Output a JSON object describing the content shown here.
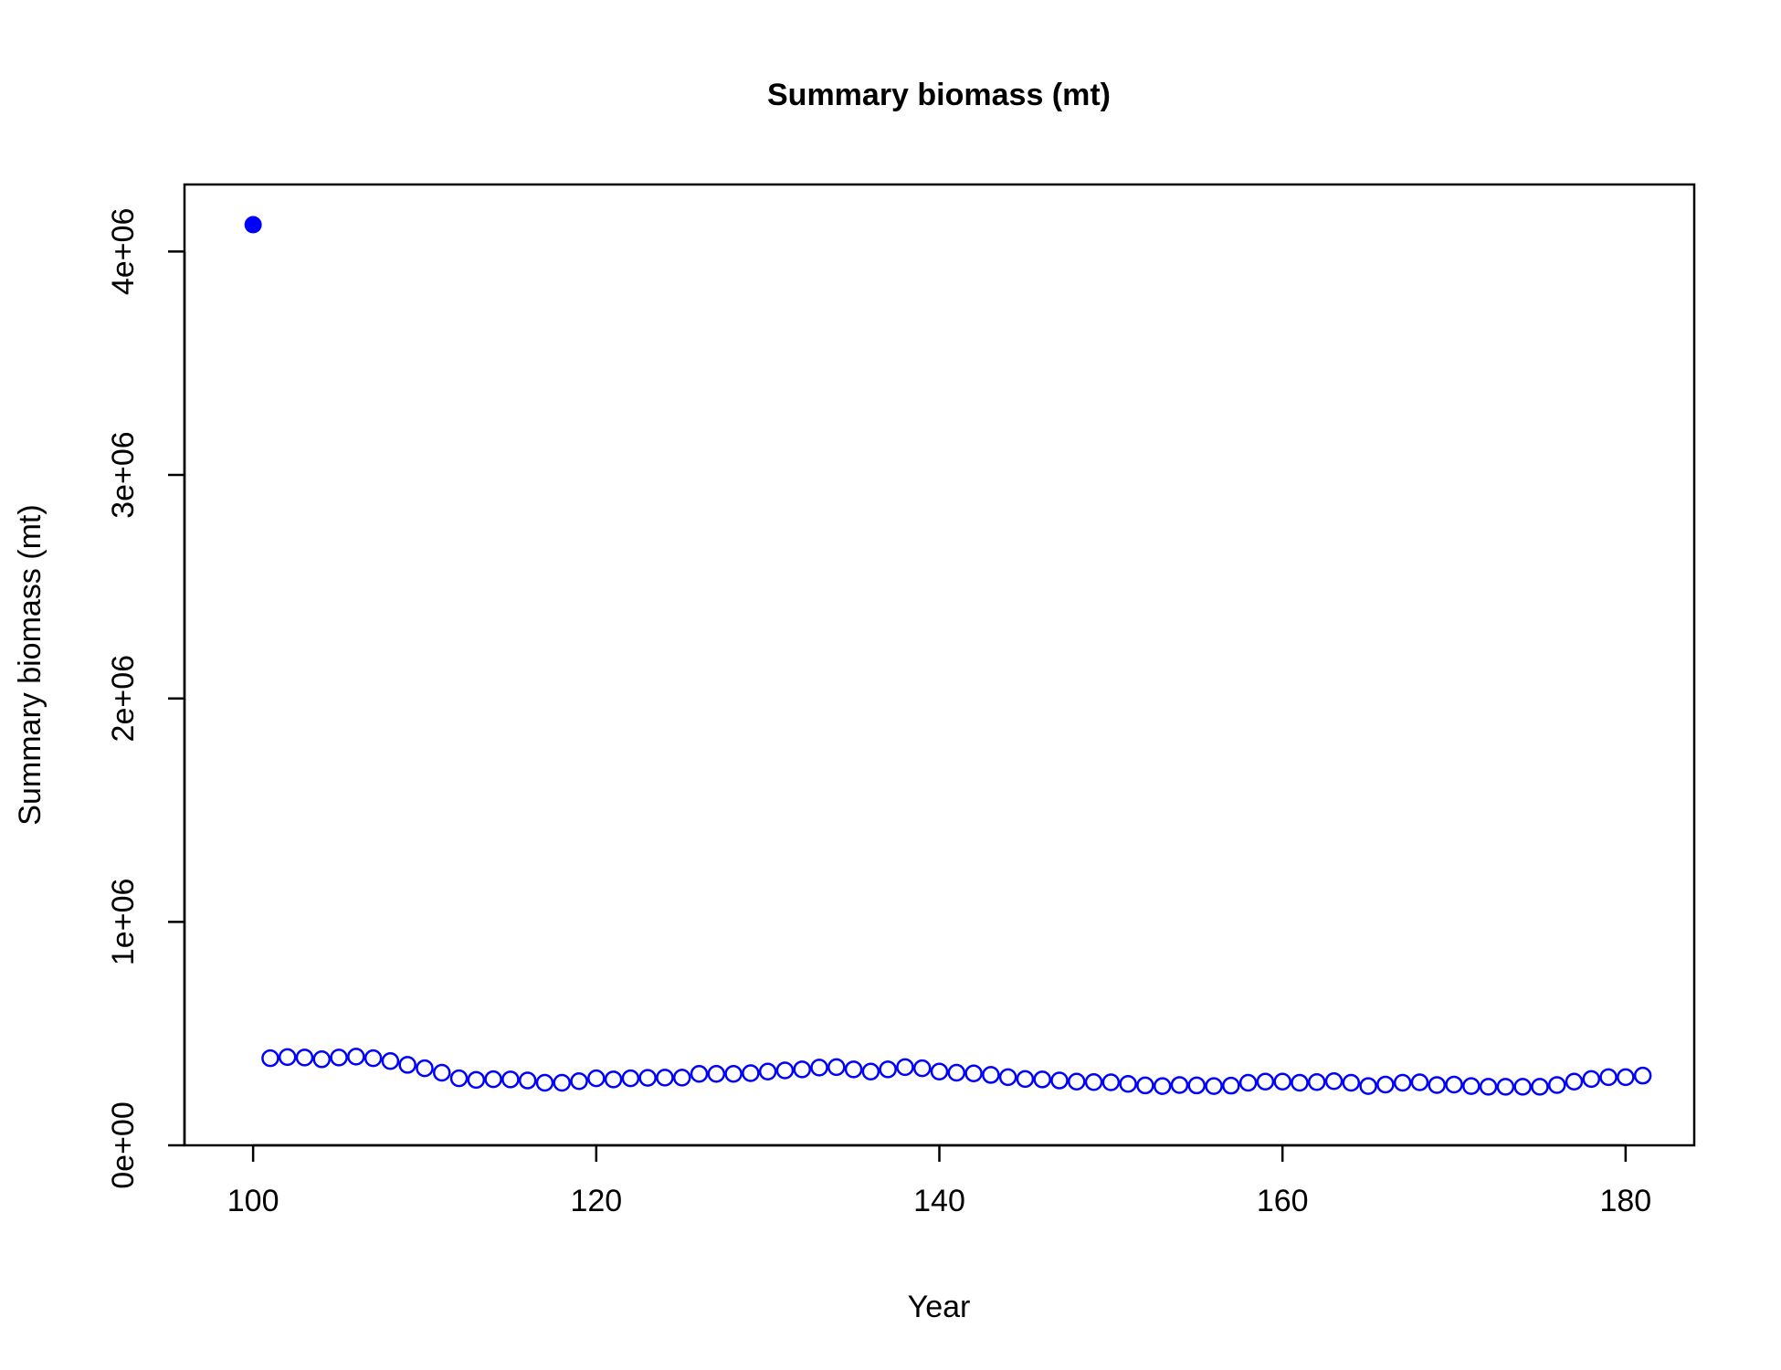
{
  "chart_data": {
    "type": "scatter",
    "title": "Summary biomass (mt)",
    "xlabel": "Year",
    "ylabel": "Summary biomass (mt)",
    "xlim": [
      96,
      184
    ],
    "ylim": [
      0,
      4300000
    ],
    "x_ticks": [
      100,
      120,
      140,
      160,
      180
    ],
    "y_ticks": [
      {
        "value": 0,
        "label": "0e+00"
      },
      {
        "value": 1000000,
        "label": "1e+06"
      },
      {
        "value": 2000000,
        "label": "2e+06"
      },
      {
        "value": 3000000,
        "label": "3e+06"
      },
      {
        "value": 4000000,
        "label": "4e+06"
      }
    ],
    "grid": false,
    "color": "#0000ff",
    "series": [
      {
        "marker": "filled-circle",
        "x": [
          100
        ],
        "y": [
          4120000
        ]
      },
      {
        "marker": "open-circle",
        "x": [
          101,
          102,
          103,
          104,
          105,
          106,
          107,
          108,
          109,
          110,
          111,
          112,
          113,
          114,
          115,
          116,
          117,
          118,
          119,
          120,
          121,
          122,
          123,
          124,
          125,
          126,
          127,
          128,
          129,
          130,
          131,
          132,
          133,
          134,
          135,
          136,
          137,
          138,
          139,
          140,
          141,
          142,
          143,
          144,
          145,
          146,
          147,
          148,
          149,
          150,
          151,
          152,
          153,
          154,
          155,
          156,
          157,
          158,
          159,
          160,
          161,
          162,
          163,
          164,
          165,
          166,
          167,
          168,
          169,
          170,
          171,
          172,
          173,
          174,
          175,
          176,
          177,
          178,
          179,
          180,
          181
        ],
        "y": [
          390000,
          395000,
          393000,
          385000,
          393000,
          397000,
          390000,
          377000,
          360000,
          345000,
          325000,
          300000,
          293000,
          296000,
          295000,
          290000,
          280000,
          280000,
          287000,
          300000,
          295000,
          300000,
          302000,
          303000,
          303000,
          320000,
          320000,
          320000,
          323000,
          330000,
          335000,
          340000,
          348000,
          350000,
          340000,
          330000,
          340000,
          350000,
          345000,
          330000,
          325000,
          322000,
          315000,
          305000,
          297000,
          295000,
          290000,
          285000,
          283000,
          282000,
          275000,
          268000,
          265000,
          270000,
          268000,
          265000,
          267000,
          280000,
          285000,
          285000,
          280000,
          283000,
          287000,
          280000,
          265000,
          272000,
          280000,
          282000,
          270000,
          272000,
          265000,
          262000,
          262000,
          262000,
          262000,
          270000,
          285000,
          297000,
          305000,
          305000,
          312000
        ]
      }
    ]
  }
}
